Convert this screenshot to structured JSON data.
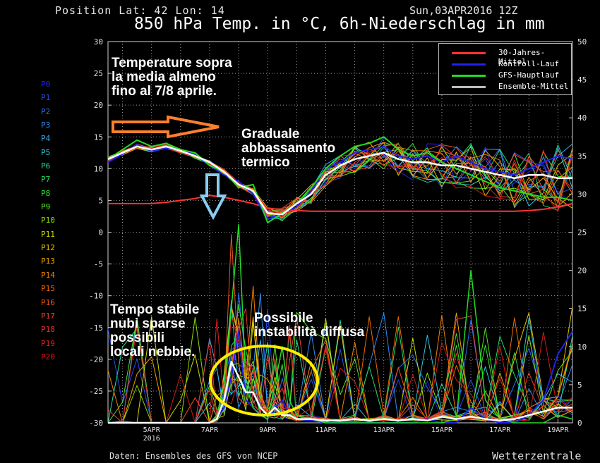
{
  "header": {
    "position": "Position  Lat: 42 Lon: 14",
    "date": "Sun,03APR2016 12Z",
    "title": "850 hPa Temp. in °C, 6h-Niederschlag in mm"
  },
  "footer": {
    "credit": "Daten: Ensembles des GFS von NCEP",
    "brand": "Wetterzentrale"
  },
  "members": [
    "P0",
    "P1",
    "P2",
    "P3",
    "P4",
    "P5",
    "P6",
    "P7",
    "P8",
    "P9",
    "P10",
    "P11",
    "P12",
    "P13",
    "P14",
    "P15",
    "P16",
    "P17",
    "P18",
    "P19",
    "P20"
  ],
  "member_colors": [
    "#2222ee",
    "#2a4cf0",
    "#2a6cf6",
    "#2b8ef8",
    "#33aef0",
    "#2ec8d8",
    "#22d8a0",
    "#22dd66",
    "#33e033",
    "#55e022",
    "#88e000",
    "#c8d800",
    "#e8c000",
    "#f0a000",
    "#f08400",
    "#f06a00",
    "#f05420",
    "#f04030",
    "#e83030",
    "#e02020",
    "#d81818"
  ],
  "annotations": {
    "note1": "Temperature sopra\nla media almeno\nfino al 7/8 aprile.",
    "note2": "Graduale\nabbassamento\ntermico",
    "note3": "Tempo stabile\nnubi sparse\npossibili\nlocali nebbie.",
    "note4": "Possibile\ninstabilità diffusa"
  },
  "highlight_colors": {
    "arrow_orange": "#ff7f2a",
    "arrow_blue": "#87cef0",
    "ellipse": "#ffee00"
  },
  "chart_data": {
    "type": "line",
    "x_ticks": [
      "5APR",
      "7APR",
      "9APR",
      "11APR",
      "13APR",
      "15APR",
      "17APR",
      "19APR"
    ],
    "x_tick_sub": "2016",
    "xlim_days": [
      3.5,
      19.5
    ],
    "y_left_ticks": [
      "30",
      "25",
      "20",
      "15",
      "10",
      "5",
      "0",
      "-5",
      "-10",
      "-15",
      "-20",
      "-25",
      "-30"
    ],
    "y_right_ticks": [
      "50",
      "45",
      "40",
      "35",
      "30",
      "25",
      "20",
      "15",
      "10",
      "5",
      "0"
    ],
    "ylim_left": [
      -30,
      30
    ],
    "ylim_right": [
      0,
      50
    ],
    "grid": true,
    "legend_position": "top-right",
    "legend": [
      {
        "name": "30-Jahres-Mittel",
        "color": "#ff3333"
      },
      {
        "name": "Kontroll-Lauf",
        "color": "#2222ee"
      },
      {
        "name": "GFS-Hauptlauf",
        "color": "#22dd22"
      },
      {
        "name": "Ensemble-Mittel",
        "color": "#bbbbbb"
      }
    ],
    "temperature": {
      "x": [
        3.5,
        4,
        4.5,
        5,
        5.5,
        6,
        6.5,
        7,
        7.5,
        8,
        8.5,
        9,
        9.5,
        10,
        10.5,
        11,
        11.5,
        12,
        12.5,
        13,
        13.5,
        14,
        14.5,
        15,
        15.5,
        16,
        16.5,
        17,
        17.5,
        18,
        18.5,
        19,
        19.5
      ],
      "climate_mean": [
        4.5,
        4.5,
        4.5,
        4.5,
        4.7,
        5.0,
        5.3,
        5.8,
        5.5,
        5.0,
        4.5,
        3.8,
        3.5,
        3.4,
        3.3,
        3.3,
        3.3,
        3.3,
        3.3,
        3.3,
        3.3,
        3.3,
        3.3,
        3.3,
        3.3,
        3.3,
        3.3,
        3.3,
        3.3,
        3.4,
        3.6,
        4.0,
        4.5
      ],
      "ensemble_mean": [
        11.5,
        12.5,
        13.5,
        13.0,
        13.5,
        12.8,
        12.0,
        11.0,
        9.5,
        7.5,
        6.5,
        3.0,
        2.8,
        4.5,
        6.0,
        9.0,
        10.5,
        11.5,
        12.0,
        12.5,
        11.5,
        11.0,
        11.0,
        10.5,
        10.5,
        10.0,
        9.5,
        9.0,
        8.5,
        9.0,
        9.0,
        8.5,
        8.5
      ],
      "control_run": [
        11.0,
        12.3,
        13.8,
        12.8,
        13.2,
        13.0,
        12.2,
        10.5,
        9.0,
        8.0,
        6.0,
        2.0,
        3.0,
        4.0,
        6.5,
        10.0,
        11.0,
        12.5,
        13.0,
        13.5,
        12.0,
        11.5,
        12.0,
        11.0,
        12.0,
        11.0,
        10.0,
        9.5,
        9.0,
        10.0,
        11.0,
        12.0,
        11.5
      ],
      "main_run": [
        11.5,
        13.0,
        14.5,
        13.5,
        14.0,
        13.0,
        12.5,
        10.5,
        9.5,
        7.0,
        7.5,
        1.5,
        3.0,
        4.5,
        7.0,
        10.0,
        12.0,
        13.5,
        14.0,
        15.0,
        13.0,
        12.0,
        12.5,
        11.0,
        10.0,
        9.0,
        8.0,
        7.0,
        6.5,
        6.0,
        5.5,
        5.5,
        5.0
      ]
    },
    "precipitation_mm": {
      "x": [
        3.5,
        4,
        4.5,
        5,
        5.5,
        6,
        6.5,
        7,
        7.25,
        7.5,
        7.75,
        8,
        8.25,
        8.5,
        8.75,
        9,
        9.25,
        9.5,
        9.75,
        10,
        10.5,
        11,
        11.5,
        12,
        12.5,
        13,
        13.5,
        14,
        14.5,
        15,
        15.5,
        16,
        16.5,
        17,
        17.5,
        18,
        18.5,
        19,
        19.5
      ],
      "ensemble_mean": [
        0,
        0,
        0,
        0,
        0,
        0,
        0,
        0,
        0.5,
        3,
        8,
        6,
        4,
        4,
        2,
        1,
        2,
        1,
        1,
        0.5,
        0.5,
        0.3,
        0.3,
        0.5,
        0.3,
        0.5,
        0.3,
        0.5,
        0.3,
        0.8,
        0.5,
        0.8,
        0.5,
        0.3,
        0.5,
        1,
        1.5,
        2,
        2
      ],
      "main_run": [
        0,
        0,
        0,
        0,
        0,
        0,
        0,
        0,
        1,
        5,
        15,
        26,
        5,
        2,
        1,
        0.5,
        5,
        10,
        3,
        1,
        0.5,
        0,
        0,
        0,
        0,
        0,
        0,
        0,
        0,
        0,
        0.5,
        20,
        3,
        0.5,
        0,
        0,
        0,
        1,
        0.5
      ],
      "control_run": [
        0,
        0,
        0,
        0,
        0,
        0,
        0,
        0,
        0.5,
        2,
        6,
        12,
        3,
        2,
        1,
        0.5,
        2,
        3,
        1,
        0.5,
        0.3,
        0,
        0,
        0,
        0,
        0,
        0,
        0,
        0.5,
        0,
        0,
        2,
        0.5,
        0,
        0,
        1,
        3,
        9,
        12
      ]
    }
  }
}
